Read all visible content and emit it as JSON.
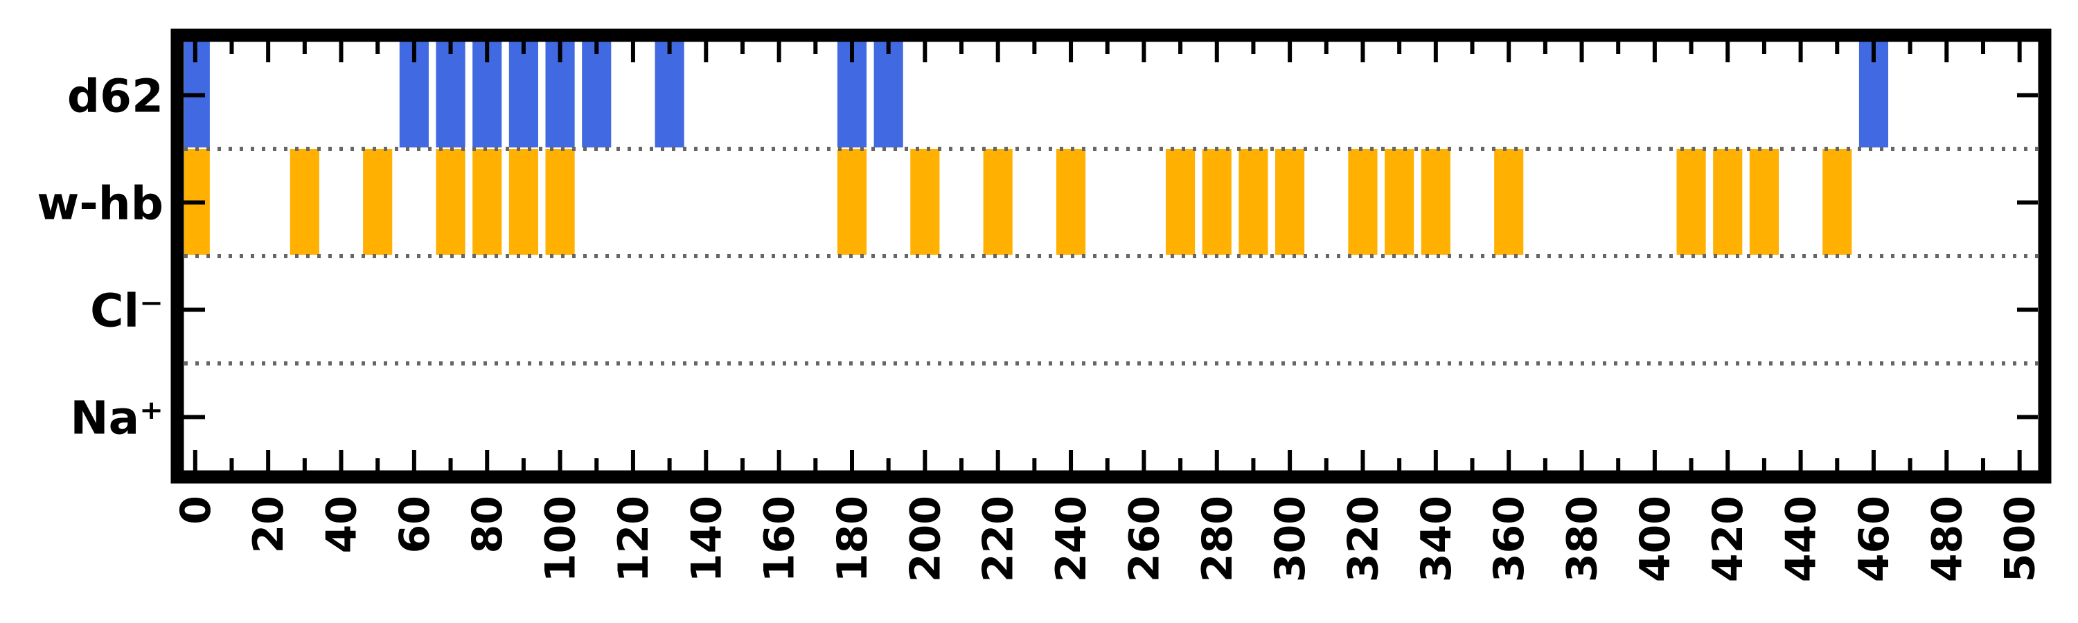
{
  "chart_data": {
    "type": "timeline",
    "rows": [
      "d62",
      "w-hb",
      "Cl⁻",
      "Na⁺"
    ],
    "xlim": [
      -3,
      505
    ],
    "xticks": [
      0,
      20,
      40,
      60,
      80,
      100,
      120,
      140,
      160,
      180,
      200,
      220,
      240,
      260,
      280,
      300,
      320,
      340,
      360,
      380,
      400,
      420,
      440,
      460,
      480,
      500
    ],
    "xticks_minor_step": 10,
    "grid": "dotted row separators",
    "series": [
      {
        "row": "d62",
        "color": "#4169e1",
        "intervals": [
          [
            -3,
            4
          ],
          [
            56,
            64
          ],
          [
            66,
            74
          ],
          [
            76,
            84
          ],
          [
            86,
            94
          ],
          [
            96,
            104
          ],
          [
            106,
            114
          ],
          [
            126,
            134
          ],
          [
            176,
            184
          ],
          [
            186,
            194
          ],
          [
            456,
            464
          ]
        ]
      },
      {
        "row": "w-hb",
        "color": "#ffb000",
        "intervals": [
          [
            -3,
            4
          ],
          [
            26,
            34
          ],
          [
            46,
            54
          ],
          [
            66,
            74
          ],
          [
            76,
            84
          ],
          [
            86,
            94
          ],
          [
            96,
            104
          ],
          [
            176,
            184
          ],
          [
            196,
            204
          ],
          [
            216,
            224
          ],
          [
            236,
            244
          ],
          [
            266,
            274
          ],
          [
            276,
            284
          ],
          [
            286,
            294
          ],
          [
            296,
            304
          ],
          [
            316,
            324
          ],
          [
            326,
            334
          ],
          [
            336,
            344
          ],
          [
            356,
            364
          ],
          [
            406,
            414
          ],
          [
            416,
            424
          ],
          [
            426,
            434
          ],
          [
            446,
            454
          ]
        ]
      },
      {
        "row": "Cl⁻",
        "color": "#4169e1",
        "intervals": []
      },
      {
        "row": "Na⁺",
        "color": "#ffb000",
        "intervals": []
      }
    ]
  }
}
